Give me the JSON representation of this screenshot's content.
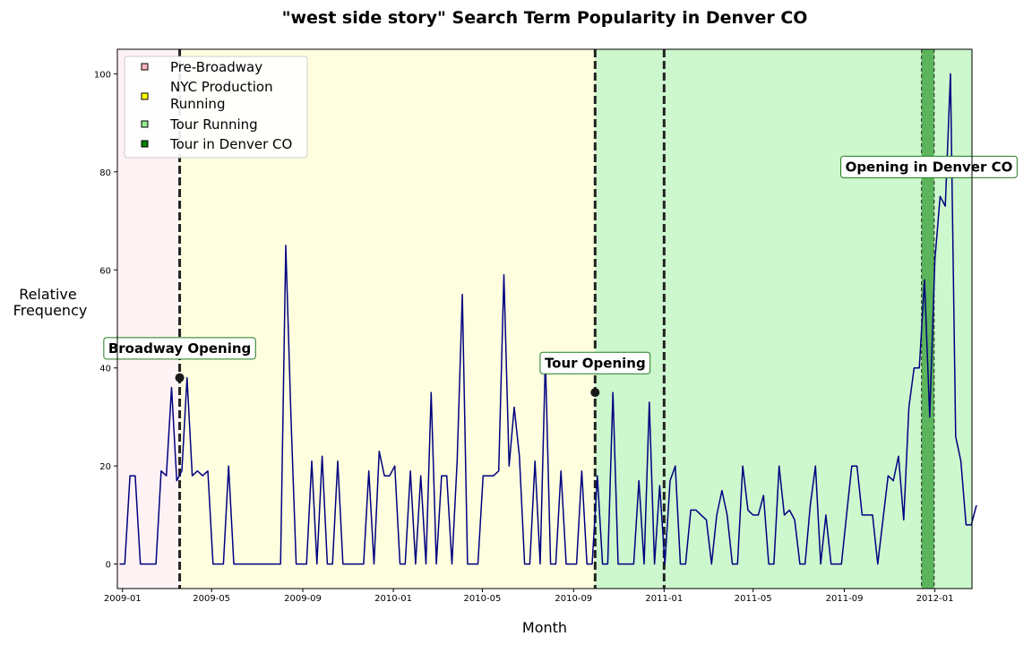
{
  "chart_data": {
    "type": "line",
    "title": "\"west side story\" Search Term Popularity in Denver CO",
    "xlabel": "Month",
    "ylabel": [
      "Relative",
      "Frequency"
    ],
    "x_start": "2008-12-28",
    "x_step_days": 7,
    "xlim": [
      "2008-12-25",
      "2012-02-20"
    ],
    "ylim": [
      -5,
      105
    ],
    "y_ticks": [
      0,
      20,
      40,
      60,
      80,
      100
    ],
    "x_ticks": [
      {
        "date": "2009-01-01",
        "label": "2009-01"
      },
      {
        "date": "2009-05-01",
        "label": "2009-05"
      },
      {
        "date": "2009-09-01",
        "label": "2009-09"
      },
      {
        "date": "2010-01-01",
        "label": "2010-01"
      },
      {
        "date": "2010-05-01",
        "label": "2010-05"
      },
      {
        "date": "2010-09-01",
        "label": "2010-09"
      },
      {
        "date": "2011-01-01",
        "label": "2011-01"
      },
      {
        "date": "2011-05-01",
        "label": "2011-05"
      },
      {
        "date": "2011-09-01",
        "label": "2011-09"
      },
      {
        "date": "2012-01-01",
        "label": "2012-01"
      }
    ],
    "series": [
      {
        "color": "#000080",
        "values": [
          0,
          0,
          18,
          18,
          0,
          0,
          0,
          0,
          19,
          18,
          36,
          17,
          19,
          38,
          18,
          19,
          18,
          19,
          0,
          0,
          0,
          20,
          0,
          0,
          0,
          0,
          0,
          0,
          0,
          0,
          0,
          0,
          65,
          30,
          0,
          0,
          0,
          21,
          0,
          22,
          0,
          0,
          21,
          0,
          0,
          0,
          0,
          0,
          19,
          0,
          23,
          18,
          18,
          20,
          0,
          0,
          19,
          0,
          18,
          0,
          35,
          0,
          18,
          18,
          0,
          21,
          55,
          0,
          0,
          0,
          18,
          18,
          18,
          19,
          59,
          20,
          32,
          22,
          0,
          0,
          21,
          0,
          42,
          0,
          0,
          19,
          0,
          0,
          0,
          19,
          0,
          0,
          18,
          0,
          0,
          35,
          0,
          0,
          0,
          0,
          17,
          0,
          33,
          0,
          16,
          0,
          17,
          20,
          0,
          0,
          11,
          11,
          10,
          9,
          0,
          10,
          15,
          10,
          0,
          0,
          20,
          11,
          10,
          10,
          14,
          0,
          0,
          20,
          10,
          11,
          9,
          0,
          0,
          12,
          20,
          0,
          10,
          0,
          0,
          0,
          10,
          20,
          20,
          10,
          10,
          10,
          0,
          9,
          18,
          17,
          22,
          9,
          32,
          40,
          40,
          58,
          30,
          62,
          75,
          73,
          100,
          26,
          21,
          8,
          8,
          12
        ]
      }
    ],
    "regions": [
      {
        "label": "Pre-Broadway",
        "start": "2008-12-25",
        "end": "2009-03-19",
        "color": "#ffb6c1",
        "alpha": 0.18
      },
      {
        "label": "NYC Production Running",
        "start": "2009-03-19",
        "end": "2010-09-30",
        "color": "#ffff00",
        "alpha": 0.12
      },
      {
        "label": "Tour Running",
        "start": "2010-09-30",
        "end": "2012-02-20",
        "color": "#90ee90",
        "alpha": 0.45
      },
      {
        "label": "Tour in Denver CO",
        "start": "2011-12-14",
        "end": "2011-12-31",
        "color": "#008000",
        "alpha": 0.55
      }
    ],
    "vlines": [
      {
        "date": "2009-03-19",
        "style": "thick"
      },
      {
        "date": "2010-09-30",
        "style": "thick"
      },
      {
        "date": "2011-01-01",
        "style": "thick"
      },
      {
        "date": "2011-12-14",
        "style": "thin"
      },
      {
        "date": "2011-12-31",
        "style": "thin"
      }
    ],
    "annotations": [
      {
        "text": "Broadway Opening",
        "date": "2009-03-19",
        "y": 38,
        "label_y": 44,
        "marker": true
      },
      {
        "text": "Tour Opening",
        "date": "2010-09-30",
        "y": 35,
        "label_y": 41,
        "marker": true
      },
      {
        "text": "Opening in Denver CO",
        "date": "2011-12-24",
        "y": 81,
        "label_y": 81,
        "marker": false
      }
    ],
    "legend_position": "upper-left",
    "grid": false
  }
}
